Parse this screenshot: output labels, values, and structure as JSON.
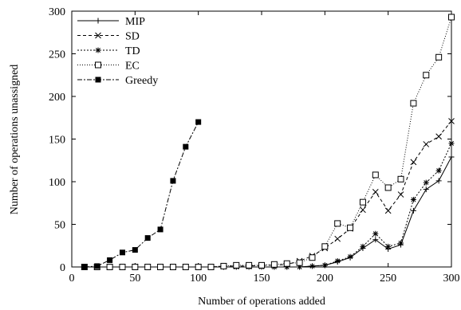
{
  "chart_data": {
    "type": "line",
    "xlabel": "Number of operations added",
    "ylabel": "Number of operations unassigned",
    "xlim": [
      0,
      300
    ],
    "ylim": [
      0,
      300
    ],
    "xticks": [
      0,
      50,
      100,
      150,
      200,
      250,
      300
    ],
    "yticks": [
      0,
      50,
      100,
      150,
      200,
      250,
      300
    ],
    "grid": false,
    "legend_position": "top-left",
    "series": [
      {
        "name": "MIP",
        "marker": "plus",
        "dash": "solid",
        "x": [
          10,
          20,
          30,
          40,
          50,
          60,
          70,
          80,
          90,
          100,
          110,
          120,
          130,
          140,
          150,
          160,
          170,
          180,
          190,
          200,
          210,
          220,
          230,
          240,
          250,
          260,
          270,
          280,
          290,
          300
        ],
        "y": [
          0,
          0,
          0,
          0,
          0,
          0,
          0,
          0,
          0,
          0,
          0,
          0,
          0,
          0,
          0,
          0,
          0,
          0,
          1,
          2,
          6,
          11,
          22,
          32,
          21,
          26,
          66,
          91,
          101,
          129
        ]
      },
      {
        "name": "SD",
        "marker": "x",
        "dash": "dashed",
        "x": [
          10,
          20,
          30,
          40,
          50,
          60,
          70,
          80,
          90,
          100,
          110,
          120,
          130,
          140,
          150,
          160,
          170,
          180,
          190,
          200,
          210,
          220,
          230,
          240,
          250,
          260,
          270,
          280,
          290,
          300
        ],
        "y": [
          0,
          0,
          0,
          0,
          0,
          0,
          0,
          0,
          0,
          0,
          0,
          1,
          1,
          1,
          2,
          2,
          3,
          7,
          13,
          22,
          33,
          45,
          67,
          88,
          66,
          85,
          123,
          144,
          153,
          171
        ]
      },
      {
        "name": "TD",
        "marker": "asterisk",
        "dash": "dotted",
        "x": [
          10,
          20,
          30,
          40,
          50,
          60,
          70,
          80,
          90,
          100,
          110,
          120,
          130,
          140,
          150,
          160,
          170,
          180,
          190,
          200,
          210,
          220,
          230,
          240,
          250,
          260,
          270,
          280,
          290,
          300
        ],
        "y": [
          0,
          0,
          0,
          0,
          0,
          0,
          0,
          0,
          0,
          0,
          0,
          0,
          0,
          0,
          0,
          0,
          0,
          0,
          1,
          2,
          7,
          12,
          24,
          39,
          24,
          28,
          79,
          99,
          113,
          145
        ]
      },
      {
        "name": "EC",
        "marker": "open-square",
        "dash": "fine-dotted",
        "x": [
          10,
          20,
          30,
          40,
          50,
          60,
          70,
          80,
          90,
          100,
          110,
          120,
          130,
          140,
          150,
          160,
          170,
          180,
          190,
          200,
          210,
          220,
          230,
          240,
          250,
          260,
          270,
          280,
          290,
          300
        ],
        "y": [
          0,
          0,
          0,
          0,
          0,
          0,
          0,
          0,
          0,
          0,
          0,
          1,
          2,
          2,
          2,
          3,
          4,
          5,
          11,
          24,
          51,
          46,
          76,
          108,
          93,
          103,
          192,
          225,
          246,
          293
        ]
      },
      {
        "name": "Greedy",
        "marker": "filled-square",
        "dash": "dash-dot",
        "x": [
          10,
          20,
          30,
          40,
          50,
          60,
          70,
          80,
          90,
          100
        ],
        "y": [
          0,
          1,
          8,
          17,
          20,
          34,
          44,
          101,
          141,
          170
        ]
      }
    ]
  }
}
